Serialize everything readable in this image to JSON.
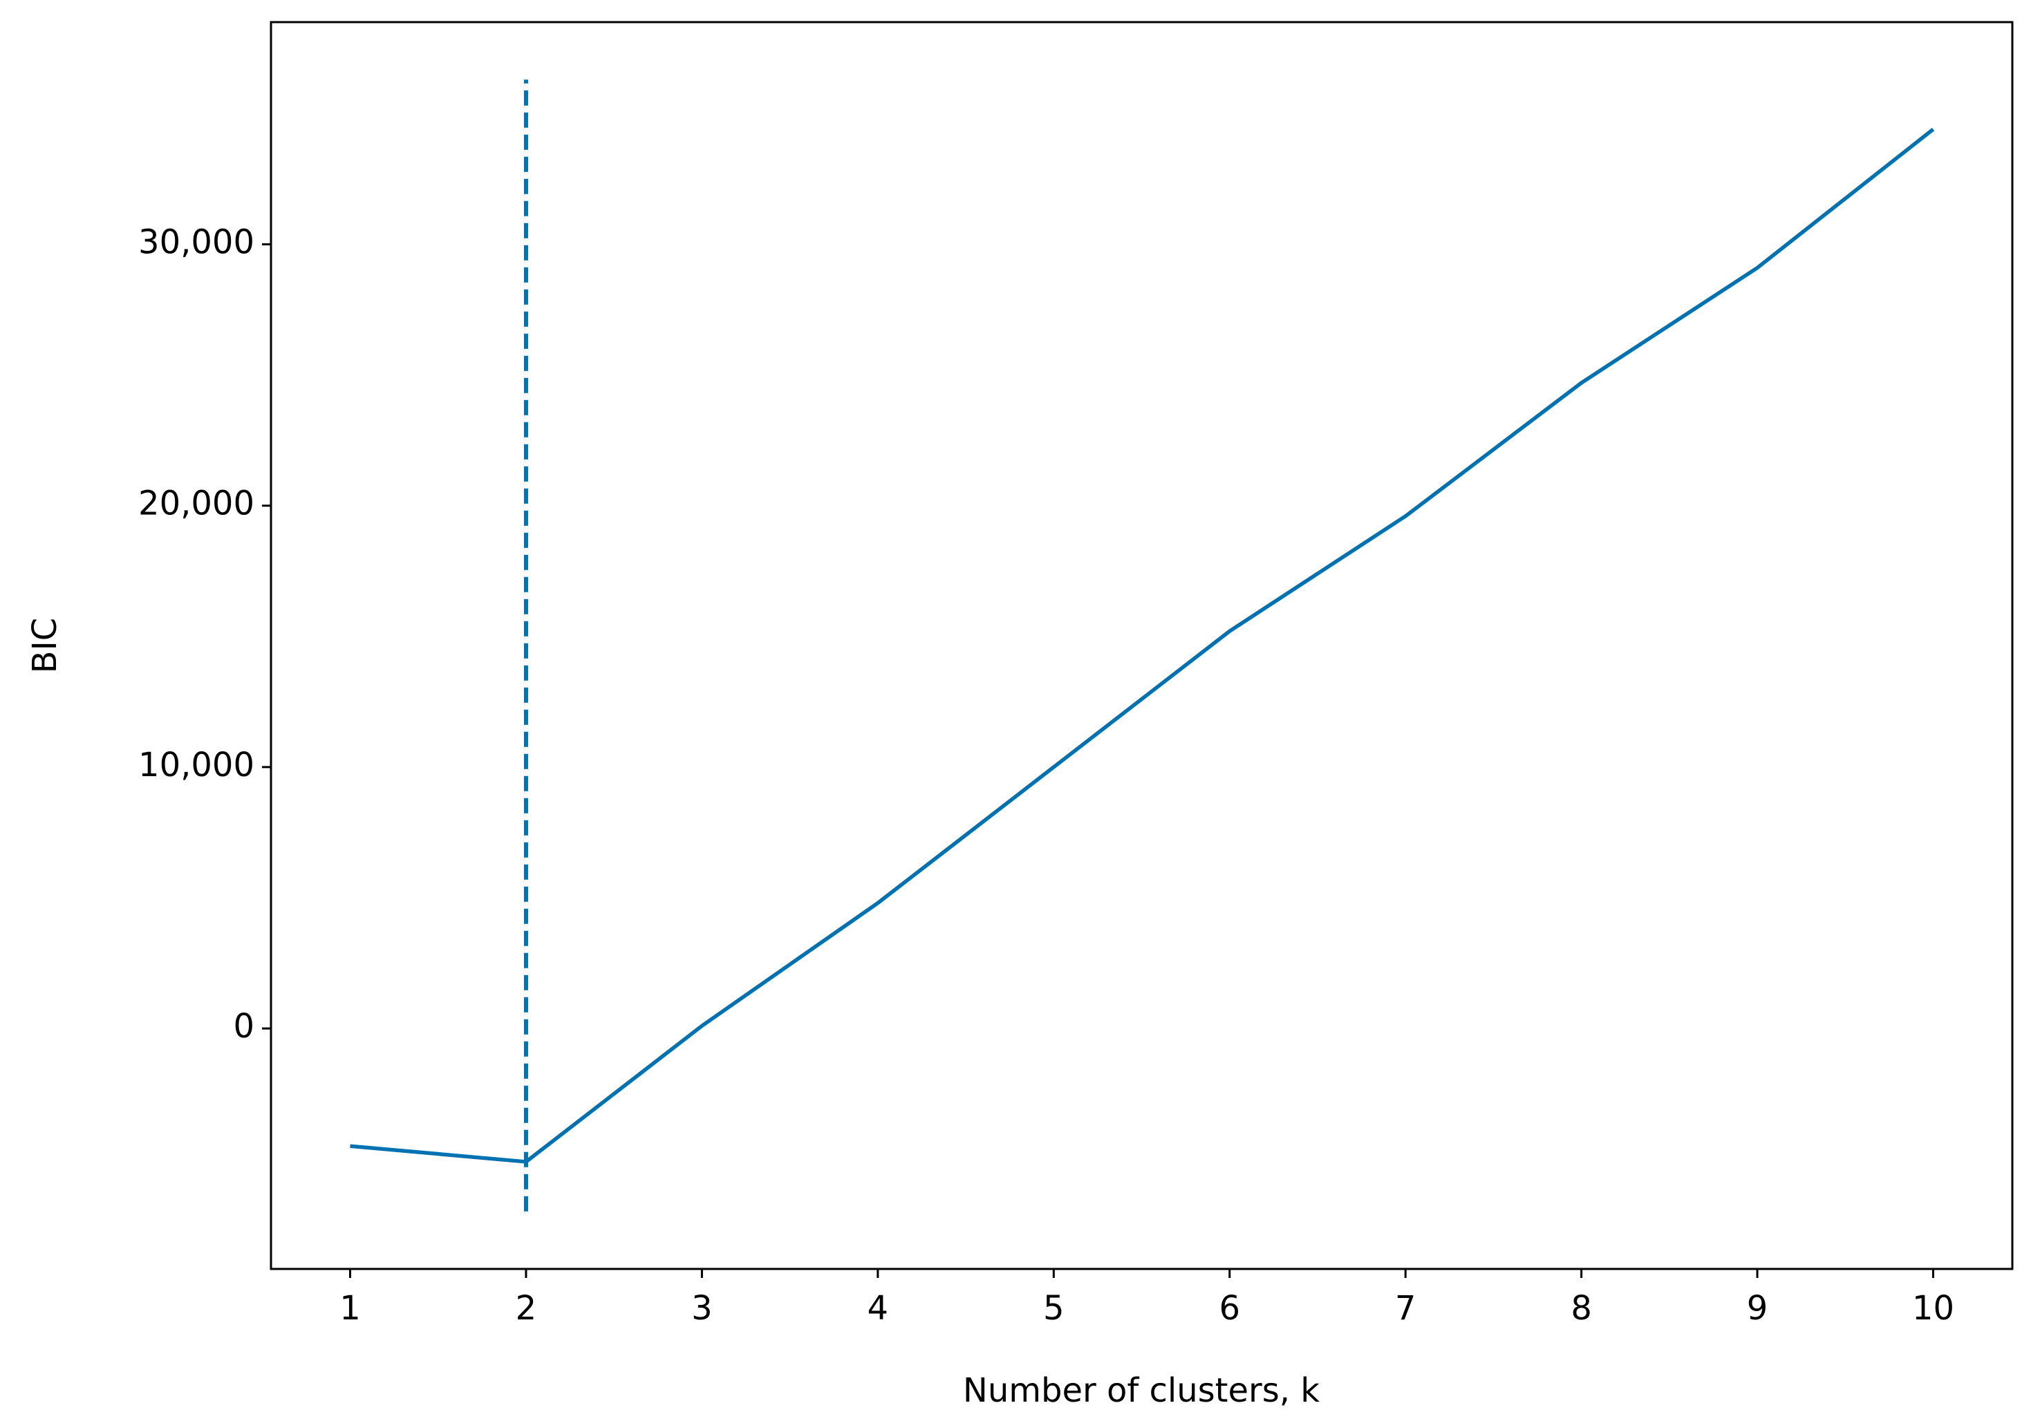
{
  "chart_data": {
    "type": "line",
    "xlabel": "Number of clusters, k",
    "ylabel": "BIC",
    "x": [
      1,
      2,
      3,
      4,
      5,
      6,
      7,
      8,
      9,
      10
    ],
    "series": [
      {
        "color": "#0072b2",
        "values": [
          -4500,
          -5100,
          100,
          4800,
          10000,
          15200,
          19600,
          24700,
          29100,
          34400
        ]
      }
    ],
    "vline": {
      "x": 2,
      "ymin": -7000,
      "ymax": 36300,
      "color": "#0072b2",
      "style": "dashed"
    },
    "xlim": [
      0.55,
      10.45
    ],
    "ylim": [
      -9200,
      38500
    ],
    "xticks": [
      1,
      2,
      3,
      4,
      5,
      6,
      7,
      8,
      9,
      10
    ],
    "yticks": [
      0,
      {
        "value": 10000,
        "label": "10,000"
      },
      {
        "value": 20000,
        "label": "20,000"
      },
      {
        "value": 30000,
        "label": "30,000"
      }
    ],
    "grid": false
  }
}
